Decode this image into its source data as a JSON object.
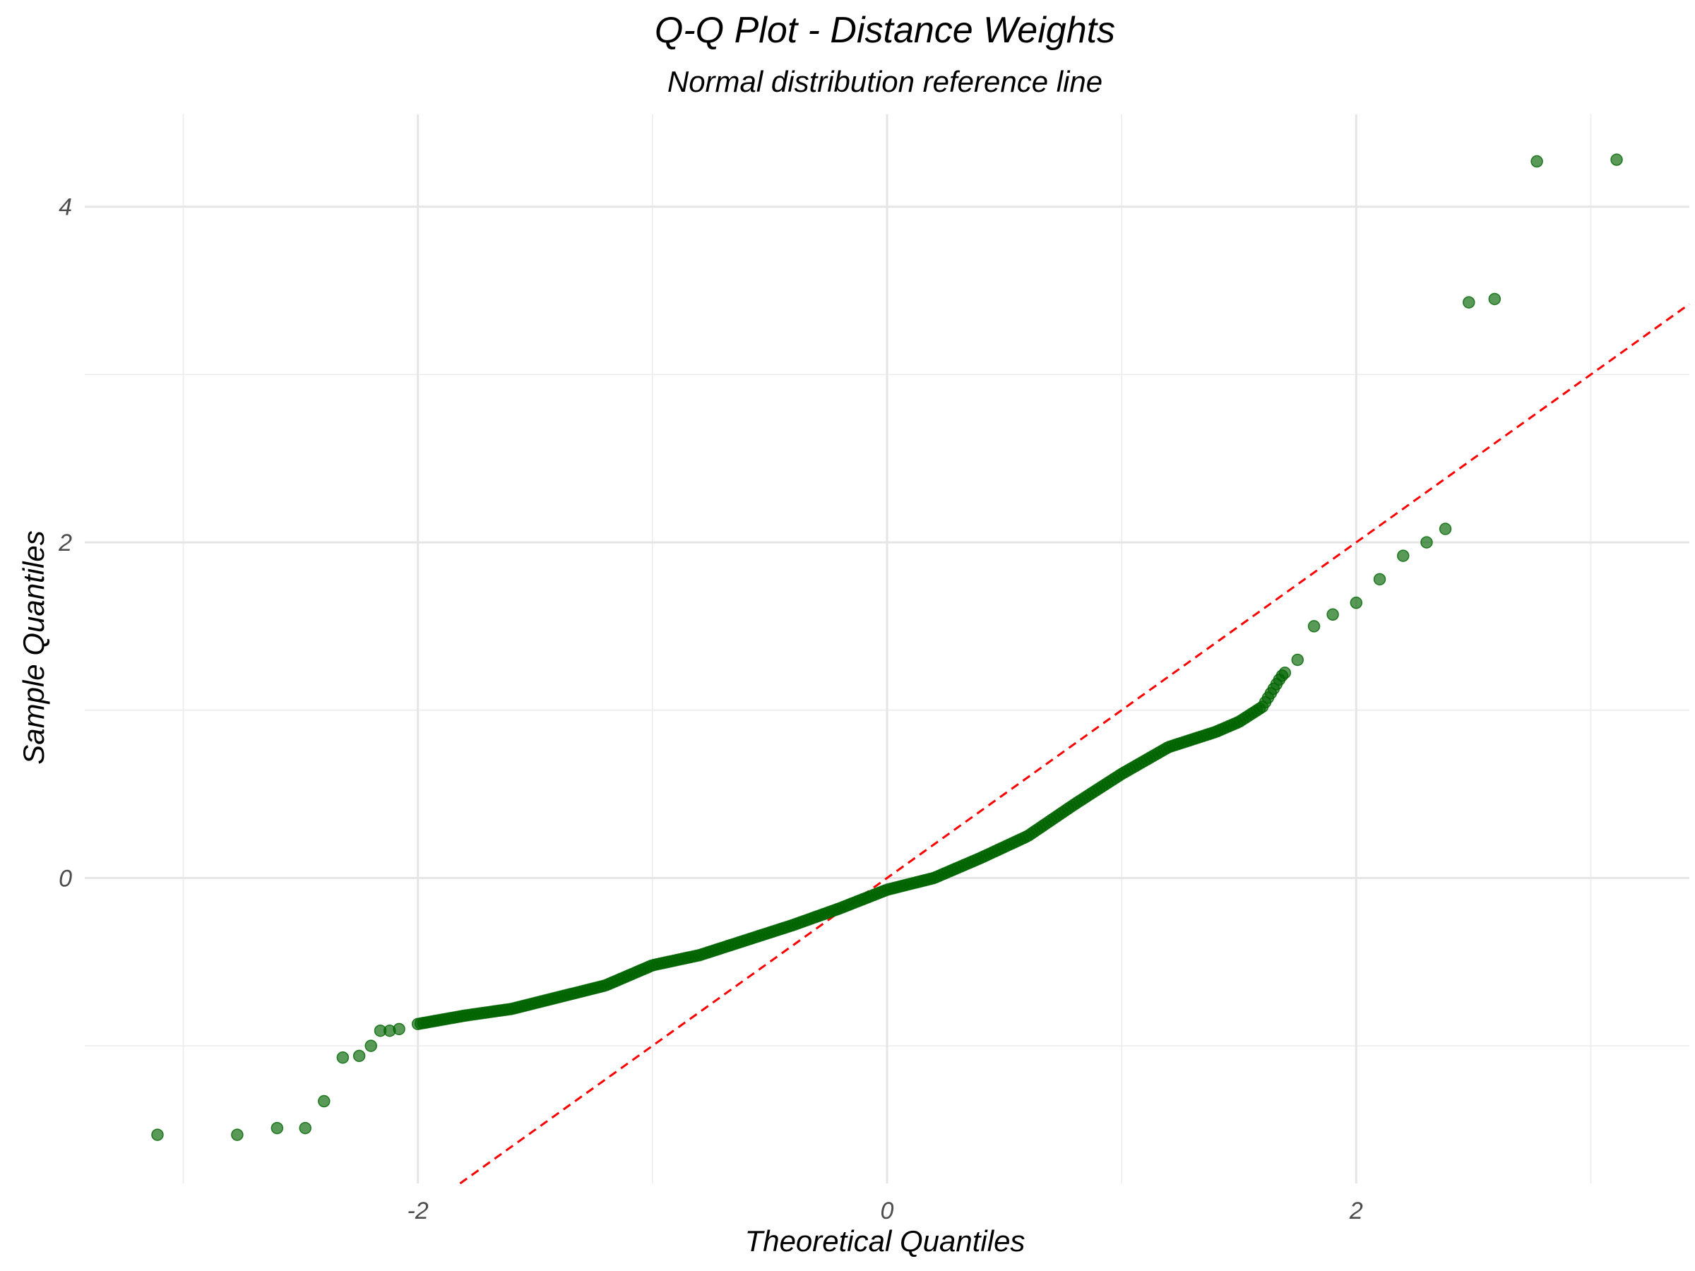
{
  "chart_data": {
    "type": "scatter",
    "title": "Q-Q Plot - Distance Weights",
    "subtitle": "Normal distribution reference line",
    "xlabel": "Theoretical Quantiles",
    "ylabel": "Sample Quantiles",
    "xlim": [
      -3.42,
      3.42
    ],
    "ylim": [
      -1.82,
      4.55
    ],
    "xticks": [
      -2,
      0,
      2
    ],
    "xtick_labels": [
      "-2",
      "0",
      "2"
    ],
    "yticks": [
      0,
      2,
      4
    ],
    "ytick_labels": [
      "0",
      "2",
      "4"
    ],
    "grid": true,
    "point_color": "#006400",
    "reference_line": {
      "slope": 1.0,
      "intercept": 0.0,
      "color": "#ff0000",
      "style": "dashed"
    },
    "series": [
      {
        "anchors": [
          [
            -3.11,
            -1.53
          ],
          [
            -2.77,
            -1.53
          ],
          [
            -2.6,
            -1.49
          ],
          [
            -2.48,
            -1.49
          ],
          [
            -2.4,
            -1.33
          ],
          [
            -2.32,
            -1.07
          ],
          [
            -2.25,
            -1.06
          ],
          [
            -2.2,
            -1.0
          ],
          [
            -2.16,
            -0.91
          ],
          [
            -2.12,
            -0.91
          ],
          [
            -2.08,
            -0.9
          ],
          [
            -2.0,
            -0.87
          ],
          [
            -1.8,
            -0.82
          ],
          [
            -1.6,
            -0.78
          ],
          [
            -1.4,
            -0.71
          ],
          [
            -1.2,
            -0.64
          ],
          [
            -1.0,
            -0.52
          ],
          [
            -0.8,
            -0.46
          ],
          [
            -0.6,
            -0.37
          ],
          [
            -0.4,
            -0.28
          ],
          [
            -0.2,
            -0.18
          ],
          [
            0.0,
            -0.07
          ],
          [
            0.2,
            0.0
          ],
          [
            0.4,
            0.12
          ],
          [
            0.6,
            0.25
          ],
          [
            0.8,
            0.44
          ],
          [
            1.0,
            0.62
          ],
          [
            1.2,
            0.78
          ],
          [
            1.4,
            0.87
          ],
          [
            1.5,
            0.93
          ],
          [
            1.6,
            1.02
          ],
          [
            1.68,
            1.2
          ],
          [
            1.75,
            1.3
          ],
          [
            1.82,
            1.5
          ],
          [
            1.9,
            1.57
          ],
          [
            2.0,
            1.64
          ],
          [
            2.1,
            1.78
          ],
          [
            2.2,
            1.92
          ],
          [
            2.3,
            2.0
          ],
          [
            2.38,
            2.08
          ],
          [
            2.48,
            3.43
          ],
          [
            2.59,
            3.45
          ],
          [
            2.77,
            4.27
          ],
          [
            3.11,
            4.28
          ]
        ]
      }
    ]
  }
}
